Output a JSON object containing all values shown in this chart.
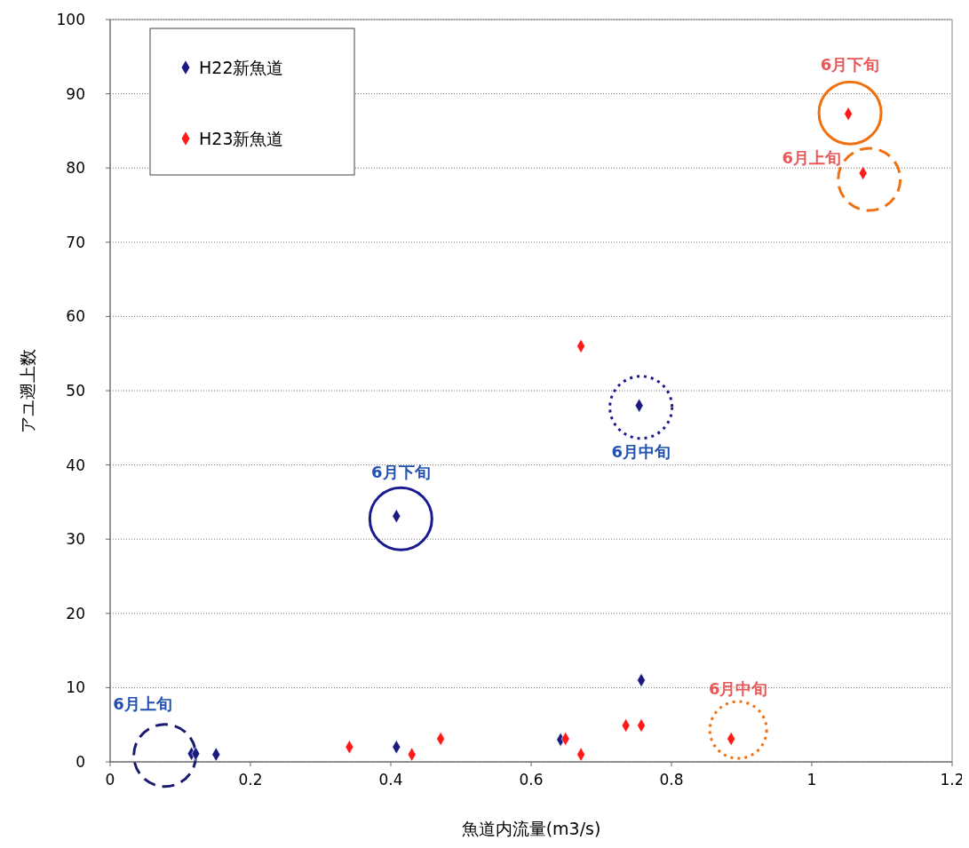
{
  "chart_data": {
    "type": "scatter",
    "xlabel": "魚道内流量(m3/s)",
    "ylabel": "アユ遡上数",
    "xlim": [
      0,
      1.2
    ],
    "xticks": [
      0,
      0.2,
      0.4,
      0.6,
      0.8,
      1,
      1.2
    ],
    "ylim": [
      0,
      100
    ],
    "yticks": [
      0,
      10,
      20,
      30,
      40,
      50,
      60,
      70,
      80,
      90,
      100
    ],
    "grid": "y",
    "legend": "top left",
    "marker": "diamond",
    "series": [
      {
        "name": "H22新魚道",
        "color": "#1a1a80",
        "x": [
          0.116,
          0.122,
          0.151,
          0.408,
          0.408,
          0.642,
          0.754,
          0.757
        ],
        "values": [
          1.1,
          1.1,
          1,
          2,
          33.1,
          3,
          48,
          11
        ]
      },
      {
        "name": "H23新魚道",
        "color": "#ff1a1a",
        "x": [
          0.341,
          0.43,
          0.471,
          0.649,
          0.671,
          0.671,
          0.735,
          0.757,
          0.885,
          1.052,
          1.073
        ],
        "values": [
          2,
          1,
          3.1,
          3.1,
          56,
          1,
          4.9,
          4.9,
          3.1,
          87.3,
          79.3
        ]
      }
    ],
    "annotations": [
      {
        "text": "6月上旬",
        "x": 0.116,
        "y": 1.1
      },
      {
        "text": "6月下旬",
        "x": 0.408,
        "y": 33.1
      },
      {
        "text": "6月中旬",
        "x": 0.754,
        "y": 48
      },
      {
        "text": "6月下旬",
        "x": 1.052,
        "y": 87.3
      },
      {
        "text": "6月上旬",
        "x": 1.073,
        "y": 79.3
      },
      {
        "text": "6月中旬",
        "x": 0.885,
        "y": 3.1
      }
    ]
  }
}
